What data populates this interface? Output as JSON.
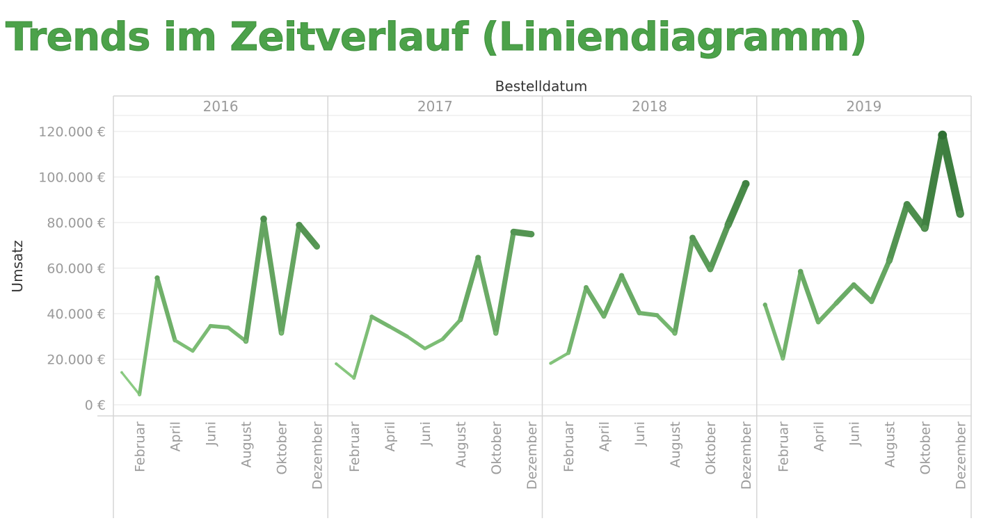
{
  "title": "Trends im Zeitverlauf (Liniendiagramm)",
  "colors": {
    "title": "#4ca24a",
    "line_light": "#8fcf85",
    "line_dark": "#2e6f32",
    "grid": "#ececec",
    "divider": "#d6d6d6",
    "tick_text": "#9a9a9a",
    "axis_title_text": "#333333"
  },
  "chart_data": {
    "type": "line",
    "xlabel": "Bestelldatum",
    "ylabel": "Umsatz",
    "ylim": [
      0,
      120000
    ],
    "y_ticks": [
      {
        "value": 0,
        "label": "0 €"
      },
      {
        "value": 20000,
        "label": "20.000 €"
      },
      {
        "value": 40000,
        "label": "40.000 €"
      },
      {
        "value": 60000,
        "label": "60.000 €"
      },
      {
        "value": 80000,
        "label": "80.000 €"
      },
      {
        "value": 100000,
        "label": "100.000 €"
      },
      {
        "value": 120000,
        "label": "120.000 €"
      }
    ],
    "months": [
      1,
      2,
      3,
      4,
      5,
      6,
      7,
      8,
      9,
      10,
      11,
      12
    ],
    "month_tick_labels": [
      {
        "month": 2,
        "label": "Februar"
      },
      {
        "month": 4,
        "label": "April"
      },
      {
        "month": 6,
        "label": "Juni"
      },
      {
        "month": 8,
        "label": "August"
      },
      {
        "month": 10,
        "label": "Oktober"
      },
      {
        "month": 12,
        "label": "Dezember"
      }
    ],
    "grid": true,
    "line_width_encodes": "Umsatz",
    "color_encodes": "Umsatz",
    "panels": [
      {
        "year": "2016",
        "values": [
          14200,
          4500,
          55700,
          28300,
          23600,
          34600,
          33900,
          27900,
          81600,
          31500,
          78900,
          69500
        ]
      },
      {
        "year": "2017",
        "values": [
          18000,
          11700,
          38700,
          34400,
          30000,
          24700,
          28800,
          37300,
          64600,
          31400,
          75900,
          74900
        ]
      },
      {
        "year": "2018",
        "values": [
          18200,
          22700,
          51500,
          38800,
          56700,
          40300,
          39300,
          31400,
          73300,
          59500,
          78900,
          97000
        ]
      },
      {
        "year": "2019",
        "values": [
          43900,
          20300,
          58500,
          36300,
          44500,
          52700,
          45300,
          63200,
          87900,
          77600,
          118400,
          83800
        ]
      }
    ]
  }
}
